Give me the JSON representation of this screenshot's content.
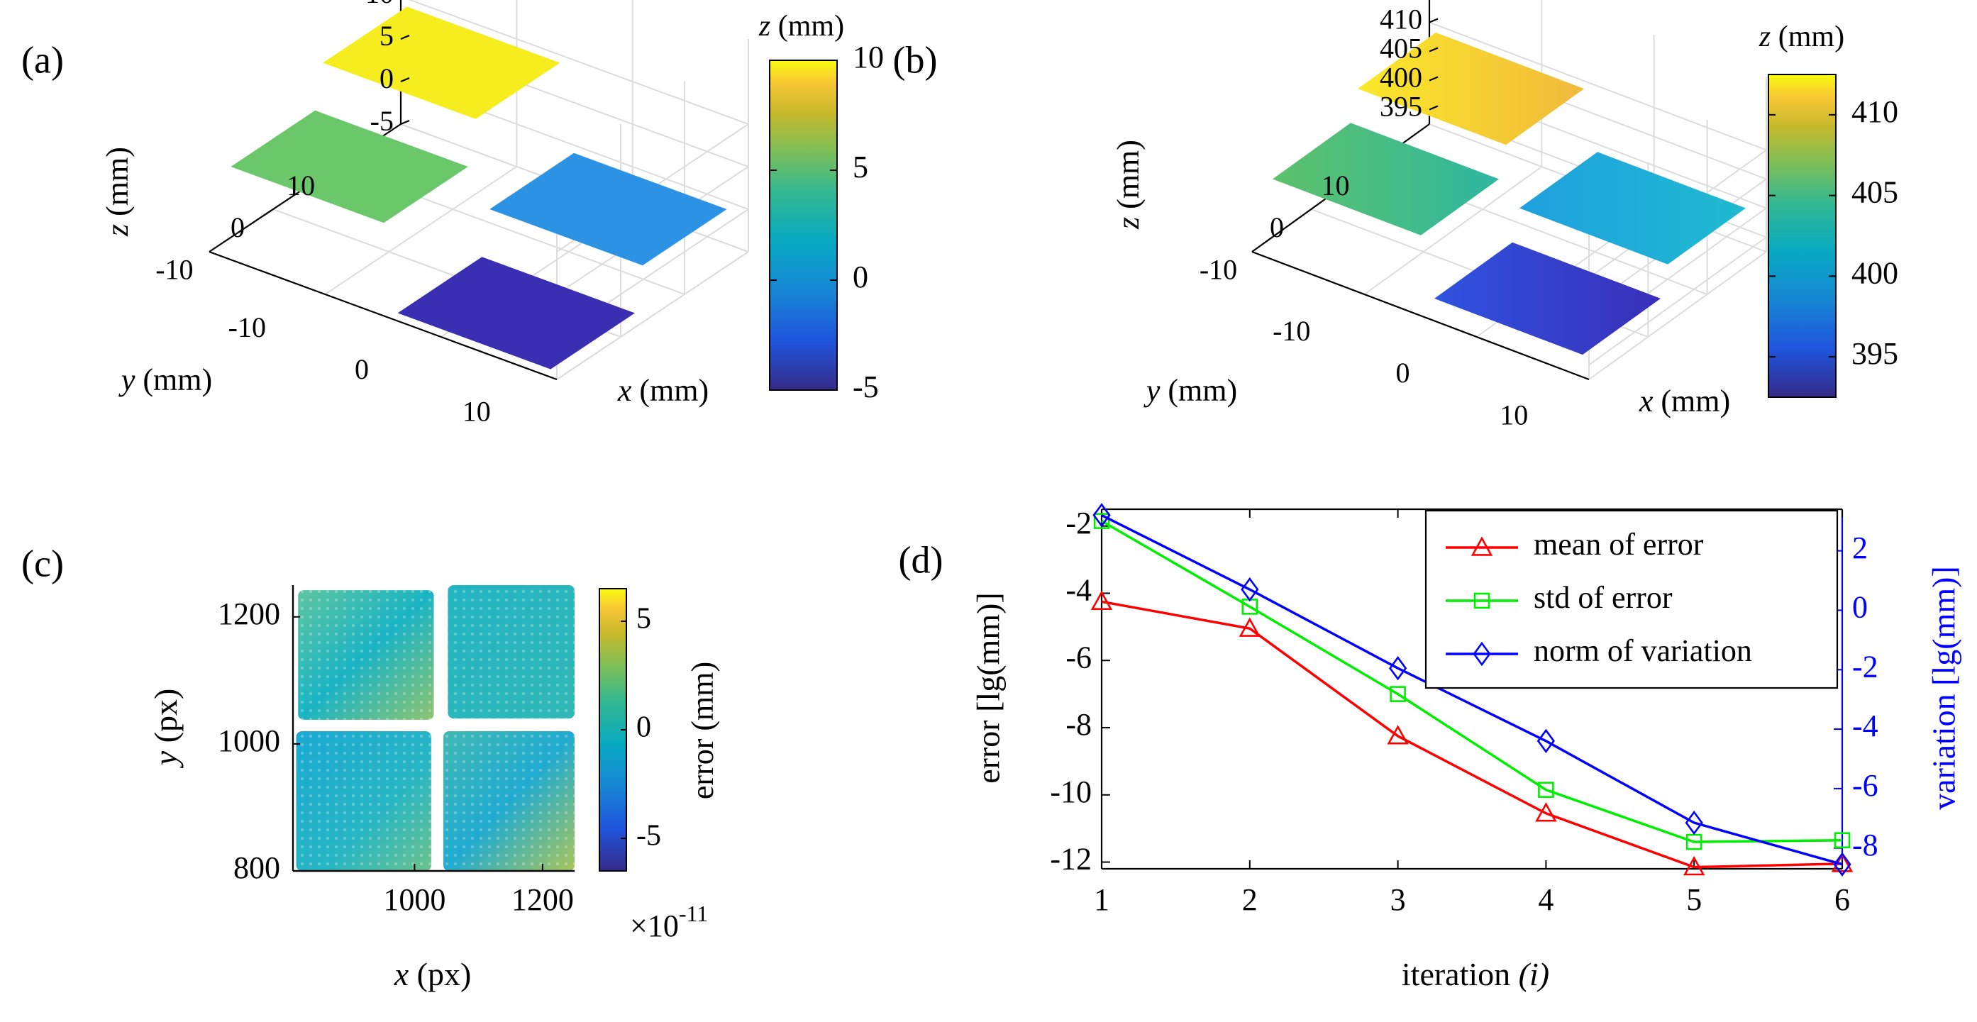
{
  "panels": {
    "a": {
      "label": "(a)"
    },
    "b": {
      "label": "(b)"
    },
    "c": {
      "label": "(c)"
    },
    "d": {
      "label": "(d)"
    }
  },
  "chart_data": [
    {
      "panel": "a",
      "type": "surface3d",
      "axes": {
        "x": {
          "var": "x",
          "unit": " (mm)",
          "ticks": [
            "-10",
            "0",
            "10"
          ]
        },
        "y": {
          "var": "y",
          "unit": " (mm)",
          "ticks": [
            "10",
            "0",
            "-10"
          ]
        },
        "z": {
          "var": "z",
          "unit": " (mm)",
          "ticks": [
            "10",
            "5",
            "0",
            "-5"
          ]
        }
      },
      "patches": [
        {
          "quadrant": "back-left",
          "z": 10,
          "color": "#f5ed1e"
        },
        {
          "quadrant": "back-right",
          "z": 0,
          "color": "#2b92e4"
        },
        {
          "quadrant": "front-left",
          "z": 5,
          "color": "#6ac76a"
        },
        {
          "quadrant": "front-right",
          "z": -5,
          "color": "#3a2eb3"
        }
      ],
      "colorbar": {
        "title_var": "z",
        "title_unit": " (mm)",
        "range": [
          -5,
          10
        ],
        "ticks": [
          "10",
          "5",
          "0",
          "-5"
        ]
      }
    },
    {
      "panel": "b",
      "type": "surface3d",
      "axes": {
        "x": {
          "var": "x",
          "unit": " (mm)",
          "ticks": [
            "-10",
            "0",
            "10"
          ]
        },
        "y": {
          "var": "y",
          "unit": " (mm)",
          "ticks": [
            "10",
            "0",
            "-10"
          ]
        },
        "z": {
          "var": "z",
          "unit": " (mm)",
          "ticks": [
            "410",
            "405",
            "400",
            "395"
          ]
        }
      },
      "patches": [
        {
          "quadrant": "back-left",
          "z": 410,
          "color": "#f2d034"
        },
        {
          "quadrant": "back-right",
          "z": 400,
          "color": "#22a8dc"
        },
        {
          "quadrant": "front-left",
          "z": 405,
          "color": "#55c07a"
        },
        {
          "quadrant": "front-right",
          "z": 395,
          "color": "#3f3fd2"
        }
      ],
      "colorbar": {
        "title_var": "z",
        "title_unit": " (mm)",
        "range": [
          392.5,
          412.5
        ],
        "ticks": [
          "410",
          "405",
          "400",
          "395"
        ]
      }
    },
    {
      "panel": "c",
      "type": "heatmap",
      "xlabel_var": "x",
      "xlabel_unit": " (px)",
      "ylabel_var": "y",
      "ylabel_unit": " (px)",
      "xlim": [
        810,
        1250
      ],
      "ylim": [
        800,
        1250
      ],
      "xticks": [
        "1000",
        "1200"
      ],
      "yticks": [
        "1200",
        "1000",
        "800"
      ],
      "value_range": [
        -6.5,
        6.5
      ],
      "colorbar": {
        "label": "error (mm)",
        "ticks": [
          "5",
          "0",
          "-5"
        ],
        "exponent_prefix": "×10",
        "exponent": "-11"
      }
    },
    {
      "panel": "d",
      "type": "line",
      "x": [
        1,
        2,
        3,
        4,
        5,
        6
      ],
      "xlabel": "iteration ",
      "xlabel_var": "(i)",
      "ylabel_left": "error [lg(mm)]",
      "ylabel_right": "variation [lg(mm)]",
      "ylim_left": [
        -12.2,
        -1.5
      ],
      "ylim_right": [
        -8.7,
        3.4
      ],
      "yticks_left": [
        "-2",
        "-4",
        "-6",
        "-8",
        "-10",
        "-12"
      ],
      "yticks_right": [
        "2",
        "0",
        "-2",
        "-4",
        "-6",
        "-8"
      ],
      "xticks": [
        "1",
        "2",
        "3",
        "4",
        "5",
        "6"
      ],
      "legend_position": "top-right",
      "series": [
        {
          "name": "mean of error",
          "axis": "left",
          "color": "#ff0000",
          "marker": "triangle",
          "values": [
            -4.25,
            -5.05,
            -8.25,
            -10.55,
            -12.15,
            -12.05
          ]
        },
        {
          "name": "std of error",
          "axis": "left",
          "color": "#00ee00",
          "marker": "square",
          "values": [
            -1.85,
            -4.4,
            -7.0,
            -9.85,
            -11.4,
            -11.35
          ]
        },
        {
          "name": "norm of variation",
          "axis": "right",
          "color": "#0000ff",
          "marker": "diamond",
          "values": [
            3.2,
            0.7,
            -1.95,
            -4.4,
            -7.15,
            -8.55
          ]
        }
      ]
    }
  ]
}
